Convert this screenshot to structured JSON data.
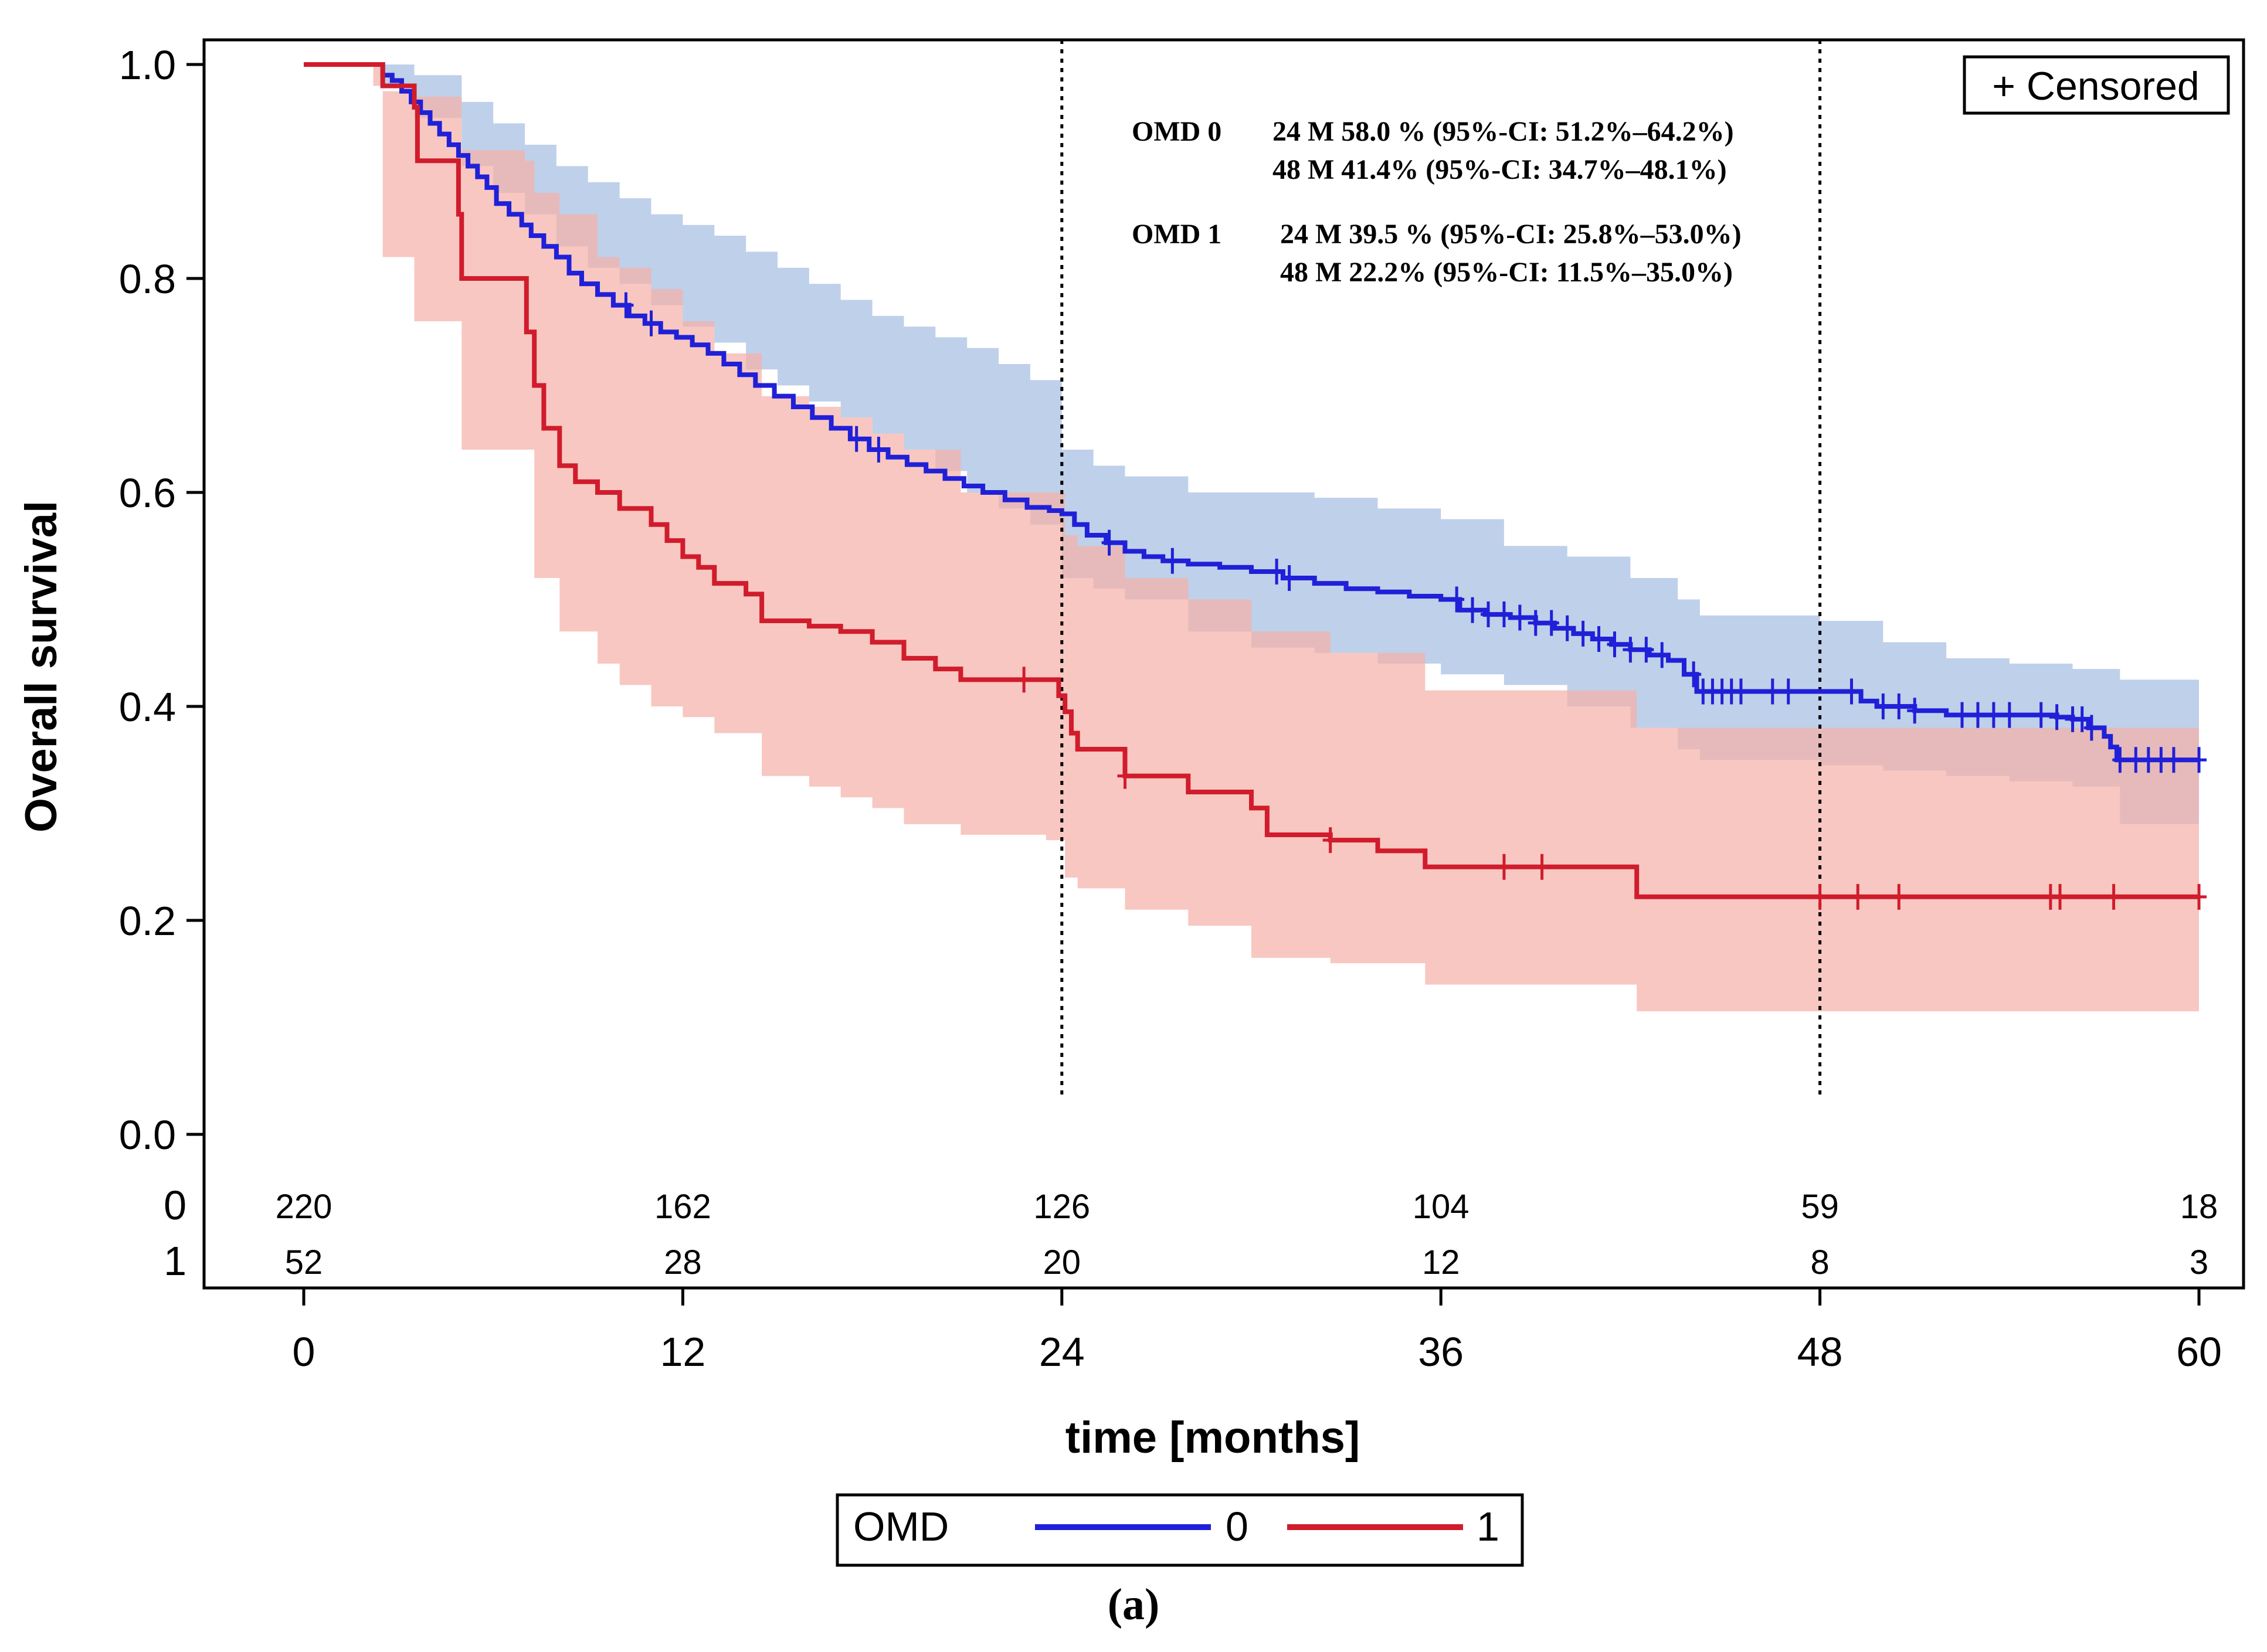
{
  "chart_data": {
    "type": "line",
    "subtype": "kaplan-meier",
    "xlabel": "time [months]",
    "ylabel": "Overall survival",
    "xlim": [
      0,
      60
    ],
    "ylim": [
      0,
      1
    ],
    "x_ticks": [
      "0",
      "12",
      "24",
      "36",
      "48",
      "60"
    ],
    "y_ticks": [
      "0.0",
      "0.2",
      "0.4",
      "0.6",
      "0.8",
      "1.0"
    ],
    "reference_lines_x": [
      24,
      48
    ],
    "censored_legend": "+ Censored",
    "annotations": [
      {
        "group": "OMD 0",
        "line1": "24 M 58.0 % (95%-CI: 51.2%–64.2%)",
        "line2": "48 M 41.4% (95%-CI: 34.7%–48.1%)"
      },
      {
        "group": "OMD 1",
        "line1": "24 M 39.5 % (95%-CI: 25.8%–53.0%)",
        "line2": "48 M 22.2% (95%-CI: 11.5%–35.0%)"
      }
    ],
    "at_risk": {
      "times": [
        0,
        12,
        24,
        36,
        48,
        60
      ],
      "rows": [
        {
          "label": "0",
          "counts": [
            "220",
            "162",
            "126",
            "104",
            "59",
            "18"
          ]
        },
        {
          "label": "1",
          "counts": [
            "52",
            "28",
            "20",
            "12",
            "8",
            "3"
          ]
        }
      ]
    },
    "legend": {
      "title": "OMD",
      "entries": [
        "0",
        "1"
      ]
    },
    "panel_label": "(a)",
    "series": [
      {
        "name": "0",
        "color": "#2020d8",
        "band_color": "#b4c8e6",
        "steps": [
          [
            0,
            1.0
          ],
          [
            2.2,
            1.0
          ],
          [
            2.5,
            0.99
          ],
          [
            2.8,
            0.985
          ],
          [
            3.1,
            0.975
          ],
          [
            3.4,
            0.965
          ],
          [
            3.7,
            0.955
          ],
          [
            4.0,
            0.945
          ],
          [
            4.3,
            0.935
          ],
          [
            4.6,
            0.925
          ],
          [
            4.9,
            0.915
          ],
          [
            5.2,
            0.905
          ],
          [
            5.5,
            0.895
          ],
          [
            5.8,
            0.885
          ],
          [
            6.1,
            0.87
          ],
          [
            6.5,
            0.86
          ],
          [
            6.9,
            0.85
          ],
          [
            7.2,
            0.84
          ],
          [
            7.6,
            0.83
          ],
          [
            8.0,
            0.82
          ],
          [
            8.4,
            0.805
          ],
          [
            8.8,
            0.795
          ],
          [
            9.3,
            0.785
          ],
          [
            9.8,
            0.775
          ],
          [
            10.3,
            0.765
          ],
          [
            10.8,
            0.758
          ],
          [
            11.3,
            0.75
          ],
          [
            11.8,
            0.745
          ],
          [
            12.3,
            0.738
          ],
          [
            12.8,
            0.73
          ],
          [
            13.3,
            0.72
          ],
          [
            13.8,
            0.71
          ],
          [
            14.3,
            0.7
          ],
          [
            14.9,
            0.69
          ],
          [
            15.5,
            0.68
          ],
          [
            16.1,
            0.67
          ],
          [
            16.7,
            0.66
          ],
          [
            17.3,
            0.65
          ],
          [
            17.9,
            0.64
          ],
          [
            18.5,
            0.633
          ],
          [
            19.1,
            0.626
          ],
          [
            19.7,
            0.62
          ],
          [
            20.3,
            0.613
          ],
          [
            20.9,
            0.606
          ],
          [
            21.5,
            0.6
          ],
          [
            22.2,
            0.593
          ],
          [
            22.9,
            0.586
          ],
          [
            23.6,
            0.583
          ],
          [
            24.0,
            0.58
          ],
          [
            24.4,
            0.57
          ],
          [
            24.8,
            0.56
          ],
          [
            25.4,
            0.553
          ],
          [
            26.0,
            0.545
          ],
          [
            26.6,
            0.54
          ],
          [
            27.2,
            0.536
          ],
          [
            28.0,
            0.533
          ],
          [
            29.0,
            0.53
          ],
          [
            30.0,
            0.526
          ],
          [
            31.0,
            0.52
          ],
          [
            32.0,
            0.515
          ],
          [
            33.0,
            0.51
          ],
          [
            34.0,
            0.507
          ],
          [
            35.0,
            0.503
          ],
          [
            36.0,
            0.5
          ],
          [
            36.6,
            0.49
          ],
          [
            37.4,
            0.486
          ],
          [
            38.2,
            0.483
          ],
          [
            39.0,
            0.478
          ],
          [
            39.6,
            0.473
          ],
          [
            40.2,
            0.468
          ],
          [
            40.8,
            0.463
          ],
          [
            41.4,
            0.458
          ],
          [
            42.0,
            0.453
          ],
          [
            42.6,
            0.448
          ],
          [
            43.2,
            0.443
          ],
          [
            43.7,
            0.43
          ],
          [
            44.1,
            0.414
          ],
          [
            48.0,
            0.414
          ],
          [
            49.3,
            0.405
          ],
          [
            49.8,
            0.4
          ],
          [
            51.0,
            0.396
          ],
          [
            52.0,
            0.392
          ],
          [
            55.5,
            0.39
          ],
          [
            56.0,
            0.388
          ],
          [
            56.5,
            0.38
          ],
          [
            57.0,
            0.372
          ],
          [
            57.2,
            0.362
          ],
          [
            57.4,
            0.35
          ],
          [
            60.0,
            0.35
          ]
        ],
        "upper": [
          [
            0,
            1.0
          ],
          [
            2.5,
            1.0
          ],
          [
            3.5,
            0.99
          ],
          [
            5.0,
            0.965
          ],
          [
            6.0,
            0.945
          ],
          [
            7.0,
            0.925
          ],
          [
            8.0,
            0.905
          ],
          [
            9.0,
            0.89
          ],
          [
            10.0,
            0.875
          ],
          [
            11.0,
            0.86
          ],
          [
            12.0,
            0.85
          ],
          [
            13.0,
            0.84
          ],
          [
            14.0,
            0.825
          ],
          [
            15.0,
            0.81
          ],
          [
            16.0,
            0.795
          ],
          [
            17.0,
            0.78
          ],
          [
            18.0,
            0.765
          ],
          [
            19.0,
            0.755
          ],
          [
            20.0,
            0.745
          ],
          [
            21.0,
            0.735
          ],
          [
            22.0,
            0.72
          ],
          [
            23.0,
            0.705
          ],
          [
            24.0,
            0.64
          ],
          [
            25.0,
            0.625
          ],
          [
            26.0,
            0.615
          ],
          [
            28.0,
            0.6
          ],
          [
            30.0,
            0.6
          ],
          [
            32.0,
            0.595
          ],
          [
            34.0,
            0.585
          ],
          [
            36.0,
            0.575
          ],
          [
            38.0,
            0.55
          ],
          [
            40.0,
            0.54
          ],
          [
            42.0,
            0.52
          ],
          [
            43.5,
            0.5
          ],
          [
            44.2,
            0.485
          ],
          [
            48.0,
            0.48
          ],
          [
            50.0,
            0.46
          ],
          [
            52.0,
            0.445
          ],
          [
            54.0,
            0.44
          ],
          [
            56.0,
            0.435
          ],
          [
            57.5,
            0.425
          ],
          [
            60.0,
            0.425
          ]
        ],
        "lower": [
          [
            0,
            1.0
          ],
          [
            2.5,
            0.98
          ],
          [
            3.5,
            0.95
          ],
          [
            5.0,
            0.905
          ],
          [
            6.0,
            0.88
          ],
          [
            7.0,
            0.86
          ],
          [
            8.0,
            0.83
          ],
          [
            9.0,
            0.81
          ],
          [
            10.0,
            0.795
          ],
          [
            11.0,
            0.775
          ],
          [
            12.0,
            0.755
          ],
          [
            13.0,
            0.74
          ],
          [
            14.0,
            0.715
          ],
          [
            15.0,
            0.7
          ],
          [
            16.0,
            0.685
          ],
          [
            17.0,
            0.67
          ],
          [
            18.0,
            0.655
          ],
          [
            19.0,
            0.64
          ],
          [
            20.0,
            0.62
          ],
          [
            21.0,
            0.6
          ],
          [
            22.0,
            0.585
          ],
          [
            23.0,
            0.57
          ],
          [
            24.0,
            0.52
          ],
          [
            25.0,
            0.51
          ],
          [
            26.0,
            0.5
          ],
          [
            28.0,
            0.47
          ],
          [
            30.0,
            0.455
          ],
          [
            32.0,
            0.45
          ],
          [
            34.0,
            0.44
          ],
          [
            36.0,
            0.43
          ],
          [
            38.0,
            0.42
          ],
          [
            40.0,
            0.4
          ],
          [
            42.0,
            0.38
          ],
          [
            43.5,
            0.36
          ],
          [
            44.2,
            0.35
          ],
          [
            48.0,
            0.345
          ],
          [
            50.0,
            0.34
          ],
          [
            52.0,
            0.335
          ],
          [
            54.0,
            0.33
          ],
          [
            56.0,
            0.325
          ],
          [
            57.5,
            0.29
          ],
          [
            60.0,
            0.27
          ]
        ],
        "censored": [
          10.2,
          11.0,
          17.5,
          18.2,
          25.5,
          27.5,
          30.8,
          31.2,
          36.5,
          37.0,
          37.5,
          38.0,
          38.5,
          39.0,
          39.5,
          40.0,
          40.5,
          41.0,
          41.5,
          42.0,
          42.5,
          43.0,
          44.0,
          44.3,
          44.6,
          44.9,
          45.2,
          45.5,
          46.5,
          47.0,
          49.0,
          50.0,
          50.5,
          51.0,
          52.5,
          53.0,
          53.5,
          54.0,
          55.0,
          55.5,
          56.0,
          56.3,
          56.6,
          57.5,
          58.0,
          58.4,
          58.8,
          59.2,
          60.0
        ]
      },
      {
        "name": "1",
        "color": "#d01c2c",
        "band_color": "#f5b1a9",
        "steps": [
          [
            0,
            1.0
          ],
          [
            2.2,
            1.0
          ],
          [
            2.5,
            0.98
          ],
          [
            3.5,
            0.96
          ],
          [
            3.6,
            0.91
          ],
          [
            4.8,
            0.91
          ],
          [
            4.9,
            0.86
          ],
          [
            5.0,
            0.8
          ],
          [
            7.0,
            0.8
          ],
          [
            7.05,
            0.75
          ],
          [
            7.3,
            0.7
          ],
          [
            7.6,
            0.66
          ],
          [
            8.1,
            0.625
          ],
          [
            8.6,
            0.61
          ],
          [
            9.3,
            0.6
          ],
          [
            10.0,
            0.585
          ],
          [
            11.0,
            0.57
          ],
          [
            11.5,
            0.555
          ],
          [
            12.0,
            0.54
          ],
          [
            12.5,
            0.53
          ],
          [
            13.0,
            0.515
          ],
          [
            14.0,
            0.505
          ],
          [
            14.5,
            0.48
          ],
          [
            16.0,
            0.475
          ],
          [
            17.0,
            0.47
          ],
          [
            18.0,
            0.46
          ],
          [
            19.0,
            0.445
          ],
          [
            20.0,
            0.435
          ],
          [
            20.8,
            0.425
          ],
          [
            23.5,
            0.425
          ],
          [
            23.9,
            0.41
          ],
          [
            24.1,
            0.395
          ],
          [
            24.3,
            0.375
          ],
          [
            24.5,
            0.36
          ],
          [
            26.0,
            0.335
          ],
          [
            28.0,
            0.32
          ],
          [
            30.0,
            0.305
          ],
          [
            30.5,
            0.28
          ],
          [
            32.5,
            0.275
          ],
          [
            34.0,
            0.265
          ],
          [
            35.5,
            0.25
          ],
          [
            42.0,
            0.25
          ],
          [
            42.2,
            0.222
          ],
          [
            60.0,
            0.222
          ]
        ],
        "upper": [
          [
            0,
            1.0
          ],
          [
            2.2,
            1.0
          ],
          [
            2.5,
            0.975
          ],
          [
            3.5,
            0.97
          ],
          [
            4.8,
            0.97
          ],
          [
            5.0,
            0.92
          ],
          [
            7.0,
            0.91
          ],
          [
            7.3,
            0.88
          ],
          [
            8.1,
            0.86
          ],
          [
            9.3,
            0.82
          ],
          [
            10.0,
            0.81
          ],
          [
            11.0,
            0.79
          ],
          [
            12.0,
            0.76
          ],
          [
            13.0,
            0.73
          ],
          [
            14.5,
            0.69
          ],
          [
            16.0,
            0.68
          ],
          [
            17.0,
            0.67
          ],
          [
            18.0,
            0.655
          ],
          [
            19.0,
            0.64
          ],
          [
            20.8,
            0.6
          ],
          [
            23.5,
            0.6
          ],
          [
            24.1,
            0.56
          ],
          [
            24.5,
            0.55
          ],
          [
            26.0,
            0.52
          ],
          [
            28.0,
            0.5
          ],
          [
            30.0,
            0.47
          ],
          [
            32.5,
            0.45
          ],
          [
            35.5,
            0.415
          ],
          [
            42.0,
            0.415
          ],
          [
            42.2,
            0.38
          ],
          [
            60.0,
            0.38
          ]
        ],
        "lower": [
          [
            0,
            1.0
          ],
          [
            2.2,
            0.98
          ],
          [
            2.5,
            0.82
          ],
          [
            3.5,
            0.76
          ],
          [
            4.8,
            0.76
          ],
          [
            5.0,
            0.64
          ],
          [
            7.0,
            0.64
          ],
          [
            7.3,
            0.52
          ],
          [
            8.1,
            0.47
          ],
          [
            9.3,
            0.44
          ],
          [
            10.0,
            0.42
          ],
          [
            11.0,
            0.4
          ],
          [
            12.0,
            0.39
          ],
          [
            13.0,
            0.375
          ],
          [
            14.5,
            0.335
          ],
          [
            16.0,
            0.325
          ],
          [
            17.0,
            0.315
          ],
          [
            18.0,
            0.305
          ],
          [
            19.0,
            0.29
          ],
          [
            20.8,
            0.28
          ],
          [
            23.5,
            0.275
          ],
          [
            24.1,
            0.24
          ],
          [
            24.5,
            0.23
          ],
          [
            26.0,
            0.21
          ],
          [
            28.0,
            0.195
          ],
          [
            30.0,
            0.165
          ],
          [
            32.5,
            0.16
          ],
          [
            35.5,
            0.14
          ],
          [
            42.0,
            0.14
          ],
          [
            42.2,
            0.115
          ],
          [
            60.0,
            0.115
          ]
        ],
        "censored": [
          22.8,
          26.0,
          32.5,
          38.0,
          39.2,
          48.0,
          49.2,
          50.5,
          55.3,
          55.6,
          57.3,
          60.0
        ]
      }
    ]
  }
}
